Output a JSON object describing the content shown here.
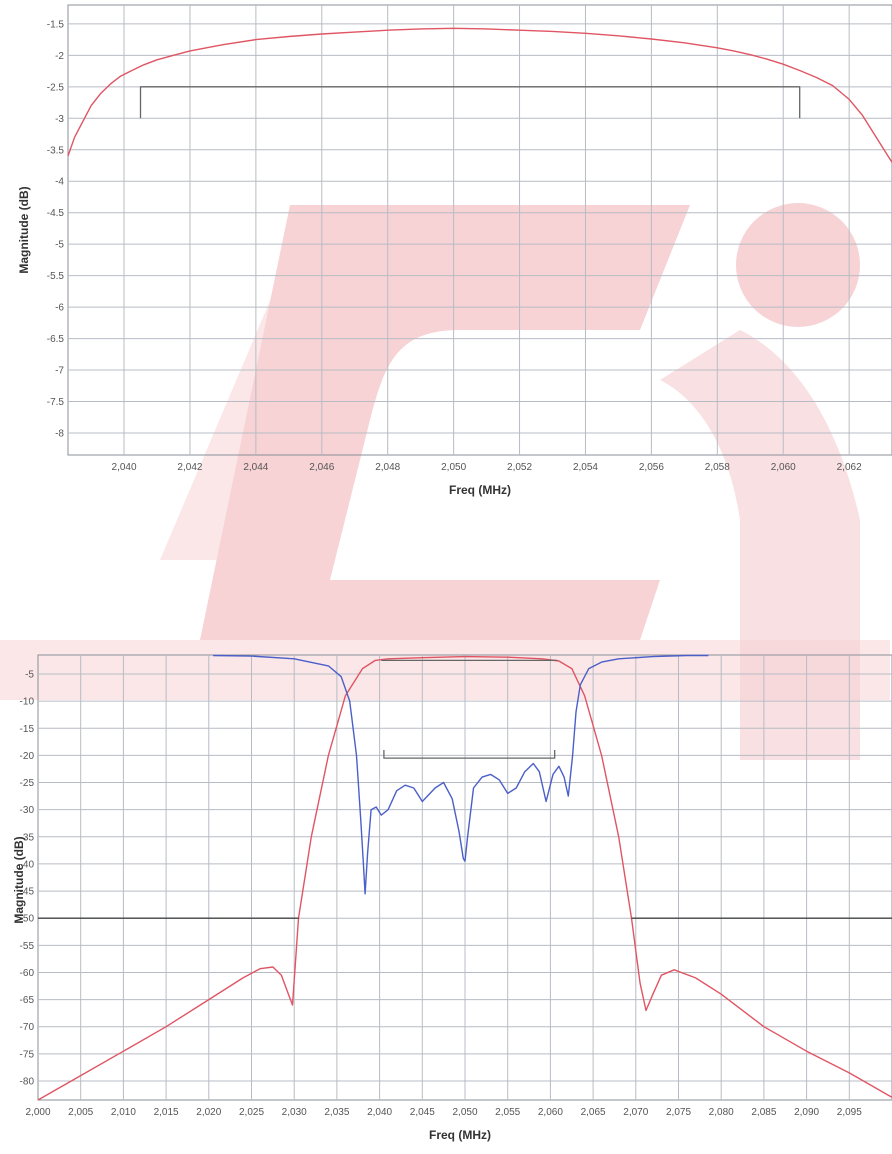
{
  "colors": {
    "watermark": "#f7d3d5",
    "s21": "#e05563",
    "s11": "#4a5fc9",
    "spec": "#666666",
    "grid": "#b7bcc4"
  },
  "chart_data": [
    {
      "type": "line",
      "xlabel": "Freq (MHz)",
      "ylabel": "Magnitude (dB)",
      "xlim": [
        2038.3,
        2063.3
      ],
      "ylim": [
        -8.35,
        -1.2
      ],
      "xticks": [
        2040,
        2042,
        2044,
        2046,
        2048,
        2050,
        2052,
        2054,
        2056,
        2058,
        2060,
        2062
      ],
      "xticklabels": [
        "2,040",
        "2,042",
        "2,044",
        "2,046",
        "2,048",
        "2,050",
        "2,052",
        "2,054",
        "2,056",
        "2,058",
        "2,060",
        "2,062"
      ],
      "yticks": [
        -1.5,
        -2,
        -2.5,
        -3,
        -3.5,
        -4,
        -4.5,
        -5,
        -5.5,
        -6,
        -6.5,
        -7,
        -7.5,
        -8
      ],
      "yticklabels": [
        "-1.5",
        "-2",
        "-2.5",
        "-3",
        "-3.5",
        "-4",
        "-4.5",
        "-5",
        "-5.5",
        "-6",
        "-6.5",
        "-7",
        "-7.5",
        "-8"
      ],
      "grid": true,
      "series": [
        {
          "color": "#e05563",
          "x": [
            2038.3,
            2038.5,
            2038.8,
            2039.0,
            2039.3,
            2039.6,
            2039.9,
            2040.2,
            2040.6,
            2041.0,
            2041.5,
            2042.0,
            2043.0,
            2044.0,
            2045.0,
            2046.0,
            2047.0,
            2048.0,
            2049.0,
            2050.0,
            2051.0,
            2052.0,
            2053.0,
            2054.0,
            2055.0,
            2056.0,
            2057.0,
            2058.0,
            2058.5,
            2059.0,
            2059.5,
            2060.0,
            2060.5,
            2061.0,
            2061.5,
            2062.0,
            2062.4,
            2062.7,
            2063.0,
            2063.3
          ],
          "y": [
            -3.6,
            -3.3,
            -3.0,
            -2.8,
            -2.6,
            -2.45,
            -2.33,
            -2.25,
            -2.15,
            -2.07,
            -2.0,
            -1.93,
            -1.83,
            -1.75,
            -1.7,
            -1.66,
            -1.63,
            -1.6,
            -1.58,
            -1.57,
            -1.58,
            -1.6,
            -1.62,
            -1.65,
            -1.69,
            -1.74,
            -1.8,
            -1.88,
            -1.93,
            -1.99,
            -2.06,
            -2.14,
            -2.24,
            -2.35,
            -2.48,
            -2.7,
            -2.95,
            -3.2,
            -3.45,
            -3.7
          ]
        },
        {
          "color": "#666666",
          "x": [
            2040.5,
            2040.5,
            2060.5,
            2060.5
          ],
          "y": [
            -3.0,
            -2.5,
            -2.5,
            -3.0
          ]
        }
      ]
    },
    {
      "type": "line",
      "xlabel": "Freq (MHz)",
      "ylabel": "Magnitude (dB)",
      "xlim": [
        2000,
        2100
      ],
      "ylim": [
        -83.5,
        -1.5
      ],
      "xticks": [
        2000,
        2005,
        2010,
        2015,
        2020,
        2025,
        2030,
        2035,
        2040,
        2045,
        2050,
        2055,
        2060,
        2065,
        2070,
        2075,
        2080,
        2085,
        2090,
        2095
      ],
      "xticklabels": [
        "2,000",
        "2,005",
        "2,010",
        "2,015",
        "2,020",
        "2,025",
        "2,030",
        "2,035",
        "2,040",
        "2,045",
        "2,050",
        "2,055",
        "2,060",
        "2,065",
        "2,070",
        "2,075",
        "2,080",
        "2,085",
        "2,090",
        "2,095"
      ],
      "yticks": [
        -5,
        -10,
        -15,
        -20,
        -25,
        -30,
        -35,
        -40,
        -45,
        -50,
        -55,
        -60,
        -65,
        -70,
        -75,
        -80
      ],
      "yticklabels": [
        "-5",
        "-10",
        "-15",
        "-20",
        "-25",
        "-30",
        "-35",
        "-40",
        "-45",
        "-50",
        "-55",
        "-60",
        "-65",
        "-70",
        "-75",
        "-80"
      ],
      "grid": true,
      "series": [
        {
          "color": "#e05563",
          "x": [
            2000,
            2005,
            2010,
            2015,
            2020,
            2024,
            2026,
            2027.5,
            2028.5,
            2029.2,
            2029.8,
            2030.5,
            2032,
            2034,
            2036,
            2038,
            2039.5,
            2041,
            2045,
            2050,
            2055,
            2059,
            2061,
            2062.5,
            2064,
            2066,
            2068,
            2069.5,
            2070.5,
            2071.2,
            2072,
            2073,
            2074.5,
            2077,
            2080,
            2085,
            2090,
            2095,
            2100
          ],
          "y": [
            -83.5,
            -79,
            -74.5,
            -70,
            -65,
            -61,
            -59.3,
            -59,
            -60.5,
            -63.5,
            -66,
            -50,
            -35,
            -20,
            -9,
            -4,
            -2.5,
            -2.2,
            -2.0,
            -1.8,
            -1.9,
            -2.2,
            -2.6,
            -4,
            -9,
            -20,
            -35,
            -50,
            -62,
            -67,
            -64,
            -60.5,
            -59.5,
            -61,
            -64,
            -70,
            -74.5,
            -78.5,
            -83
          ]
        },
        {
          "color": "#4a5fc9",
          "x": [
            2020.5,
            2025,
            2030,
            2034,
            2035.5,
            2036.5,
            2037.3,
            2037.8,
            2038.1,
            2038.3,
            2038.6,
            2039,
            2039.6,
            2040.2,
            2041,
            2042,
            2043,
            2044,
            2045,
            2046.5,
            2047.5,
            2048.5,
            2049.3,
            2049.8,
            2050,
            2050.3,
            2051,
            2052,
            2053,
            2054,
            2055,
            2056,
            2057,
            2058,
            2058.7,
            2059.5,
            2060.3,
            2061,
            2061.6,
            2062.1,
            2062.6,
            2063,
            2063.5,
            2064.5,
            2066,
            2068,
            2072,
            2076,
            2078.5
          ],
          "y": [
            -1.6,
            -1.7,
            -2.2,
            -3.5,
            -5.5,
            -10,
            -20,
            -32,
            -40,
            -45.5,
            -38,
            -30,
            -29.5,
            -31,
            -30,
            -26.5,
            -25.5,
            -26,
            -28.5,
            -26,
            -25,
            -28,
            -34,
            -39,
            -39.5,
            -35,
            -26,
            -24,
            -23.5,
            -24.5,
            -27,
            -26,
            -23,
            -21.5,
            -23,
            -28.5,
            -23.5,
            -22,
            -24,
            -27.5,
            -20,
            -12,
            -7,
            -4,
            -2.8,
            -2.2,
            -1.8,
            -1.6,
            -1.6
          ]
        },
        {
          "color": "#666666",
          "x": [
            2040.5,
            2040.5,
            2060.5,
            2060.5
          ],
          "y": [
            -19,
            -20.5,
            -20.5,
            -19
          ]
        },
        {
          "color": "#666666",
          "x": [
            2040.2,
            2060.8
          ],
          "y": [
            -2.5,
            -2.5
          ]
        },
        {
          "color": "#444444",
          "x": [
            2000,
            2030.5
          ],
          "y": [
            -50,
            -50
          ]
        },
        {
          "color": "#444444",
          "x": [
            2069.5,
            2100
          ],
          "y": [
            -50,
            -50
          ]
        }
      ]
    }
  ]
}
